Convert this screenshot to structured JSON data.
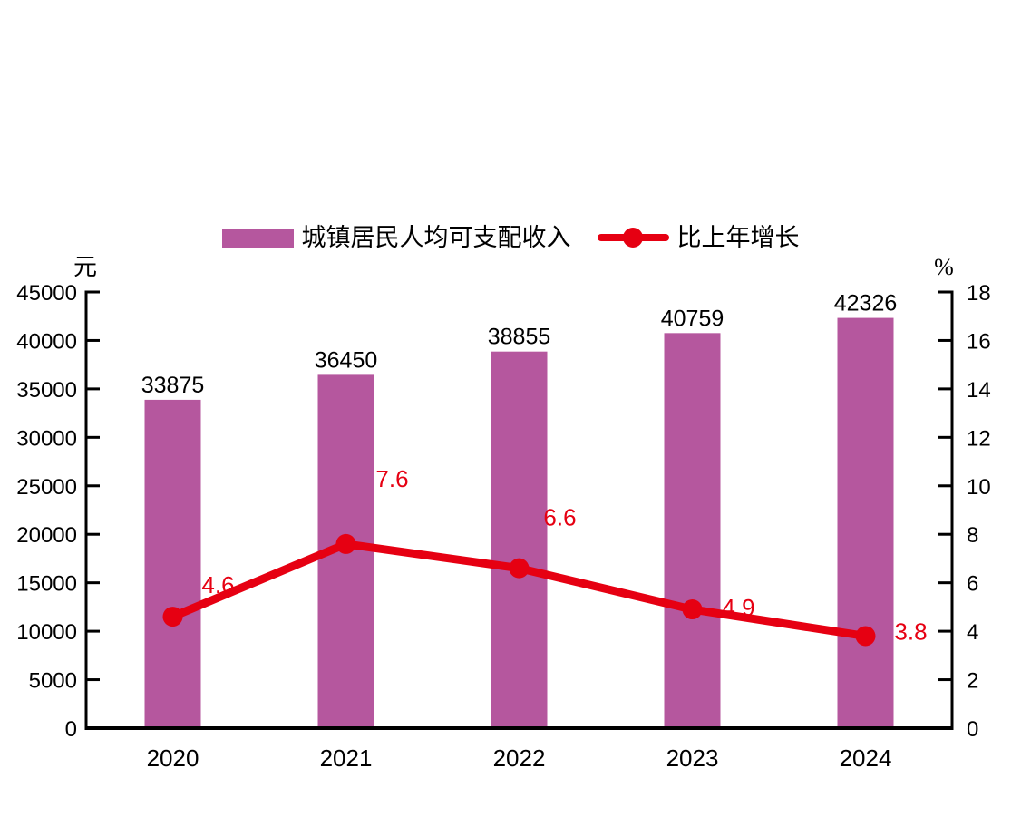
{
  "chart_data": {
    "type": "combo-bar-line",
    "title": "",
    "categories": [
      "2020",
      "2021",
      "2022",
      "2023",
      "2024"
    ],
    "series": [
      {
        "name": "城镇居民人均可支配收入",
        "kind": "bar",
        "axis": "left",
        "unit": "元",
        "color": "#B5579E",
        "values": [
          33875,
          36450,
          38855,
          40759,
          42326
        ],
        "value_label_color": "#000000"
      },
      {
        "name": "比上年增长",
        "kind": "line",
        "axis": "right",
        "unit": "%",
        "color": "#E60012",
        "values": [
          4.6,
          7.6,
          6.6,
          4.9,
          3.8
        ],
        "value_label_color": "#E60012"
      }
    ],
    "axes": {
      "left": {
        "unit_label": "元",
        "min": 0,
        "max": 45000,
        "tick_step": 5000,
        "ticks": [
          0,
          5000,
          10000,
          15000,
          20000,
          25000,
          30000,
          35000,
          40000,
          45000
        ]
      },
      "right": {
        "unit_label": "%",
        "min": 0,
        "max": 18,
        "tick_step": 2,
        "ticks": [
          0,
          2,
          4,
          6,
          8,
          10,
          12,
          14,
          16,
          18
        ]
      }
    },
    "grid": false,
    "legend_position": "top-center",
    "axis_color": "#000000",
    "background": "#ffffff",
    "data_labels": true
  }
}
